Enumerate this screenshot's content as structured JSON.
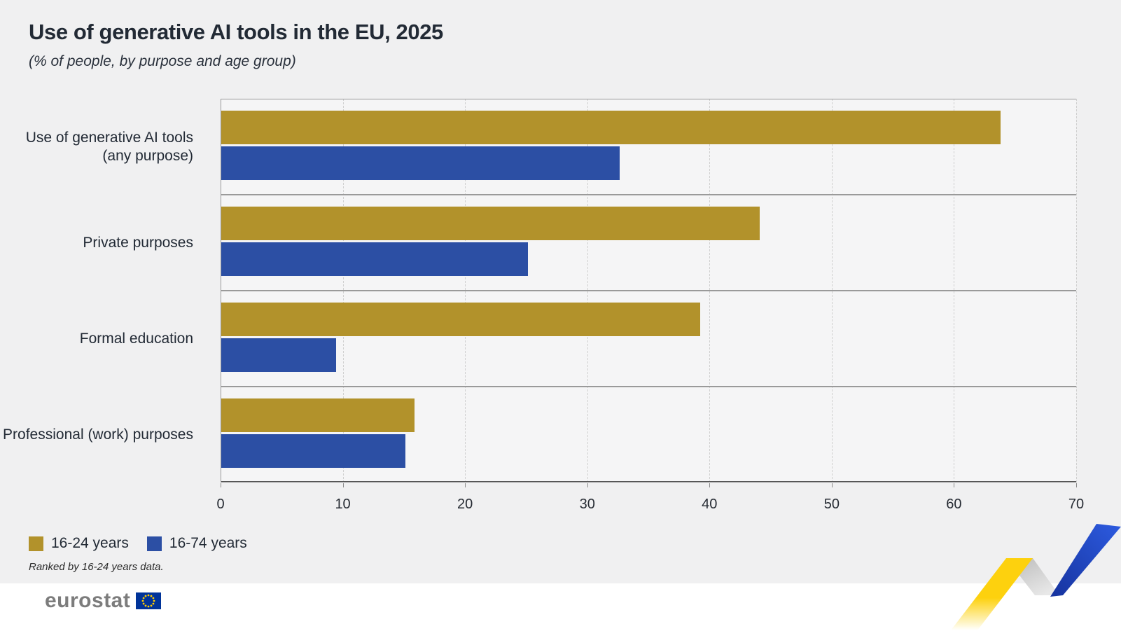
{
  "title": "Use of generative AI tools in the EU, 2025",
  "subtitle": "(% of people, by purpose and age group)",
  "chart_data": {
    "type": "bar",
    "orientation": "horizontal",
    "title": "Use of generative AI tools in the EU, 2025",
    "subtitle": "(% of people, by purpose and age group)",
    "xlabel": "% of people",
    "ylabel": "",
    "xlim": [
      0,
      70
    ],
    "xticks": [
      0,
      10,
      20,
      30,
      40,
      50,
      60,
      70
    ],
    "grid": "vertical-dashed",
    "legend_position": "bottom-left",
    "sort_note": "Ranked by 16-24 years data.",
    "categories": [
      {
        "label": "Use of generative AI tools (any purpose)",
        "lines": [
          "Use of generative AI tools",
          "(any purpose)"
        ]
      },
      {
        "label": "Private purposes",
        "lines": [
          "Private purposes"
        ]
      },
      {
        "label": "Formal education",
        "lines": [
          "Formal education"
        ]
      },
      {
        "label": "Professional (work) purposes",
        "lines": [
          "Professional (work) purposes"
        ]
      }
    ],
    "series": [
      {
        "name": "16-24 years",
        "color": "#b2922b",
        "values": [
          63.8,
          44.1,
          39.2,
          15.8
        ]
      },
      {
        "name": "16-74 years",
        "color": "#2c4fa4",
        "values": [
          32.6,
          25.1,
          9.4,
          15.1
        ]
      }
    ]
  },
  "legend": {
    "items": [
      {
        "label": "16-24 years",
        "color": "#b2922b"
      },
      {
        "label": "16-74 years",
        "color": "#2c4fa4"
      }
    ]
  },
  "footnote": "Ranked by 16-24 years data.",
  "branding": {
    "logo_text": "eurostat",
    "flag": "eu-flag"
  },
  "colors": {
    "background": "#f0f0f1",
    "plot_background": "#f5f5f6",
    "bar_gold": "#b2922b",
    "bar_blue": "#2c4fa4",
    "text_dark": "#222a35",
    "panel_border": "#9a9a9a",
    "gridline": "#cfcfcf",
    "axis_line": "#555555",
    "footer_strip": "#ffffff",
    "logo_gray": "#7c7c7c",
    "flag_blue": "#003399",
    "flag_stars": "#ffcc00",
    "ribbon_yellow": "#ffd414",
    "ribbon_gray": "#c7c7c7",
    "ribbon_blue": "#2350d2"
  }
}
